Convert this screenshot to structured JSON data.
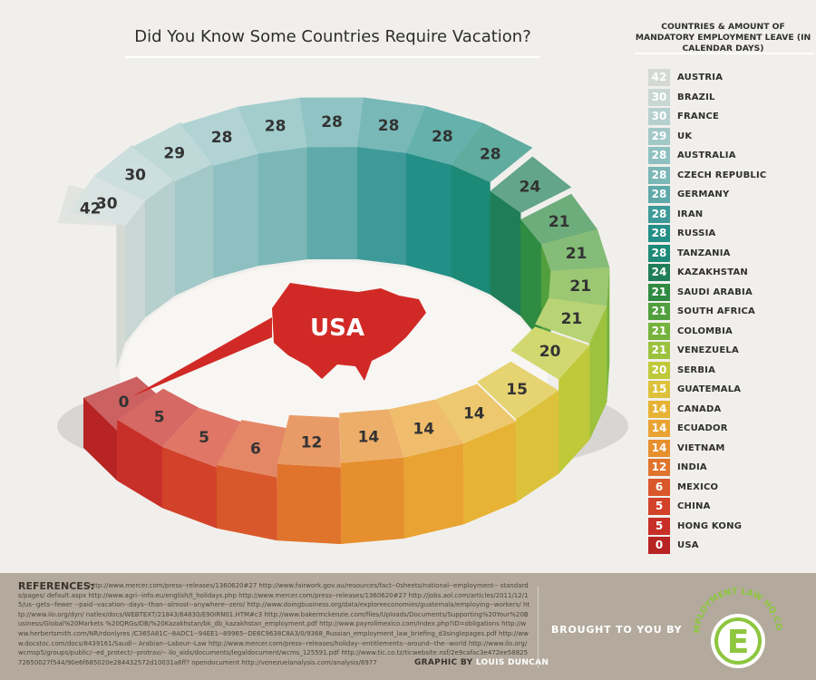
{
  "title": "Did You Know Some Countries Require Vacation?",
  "legend_title": "Countries & Amount of Mandatory Employment Leave (in Calendar Days)",
  "center_label": "USA",
  "chart_data": {
    "type": "bar",
    "title": "Did You Know Some Countries Require Vacation?",
    "categories": [
      "AUSTRIA",
      "BRAZIL",
      "FRANCE",
      "UK",
      "AUSTRALIA",
      "CZECH REPUBLIC",
      "GERMANY",
      "IRAN",
      "RUSSIA",
      "TANZANIA",
      "KAZAKHSTAN",
      "SAUDI ARABIA",
      "SOUTH AFRICA",
      "COLOMBIA",
      "VENEZUELA",
      "SERBIA",
      "GUATEMALA",
      "CANADA",
      "ECUADOR",
      "VIETNAM",
      "INDIA",
      "MEXICO",
      "CHINA",
      "HONG KONG",
      "USA"
    ],
    "values": [
      42,
      30,
      30,
      29,
      28,
      28,
      28,
      28,
      28,
      28,
      24,
      21,
      21,
      21,
      21,
      20,
      15,
      14,
      14,
      14,
      12,
      6,
      5,
      5,
      0
    ],
    "colors": [
      "#d4d9d3",
      "#c9d7d4",
      "#b6d0cf",
      "#a3c8c8",
      "#8fc0c1",
      "#7cb7b7",
      "#5fa9aa",
      "#3e9a98",
      "#238f87",
      "#1c8a76",
      "#1f7e58",
      "#2f8a42",
      "#519f3d",
      "#75b33c",
      "#9dc23e",
      "#bfc939",
      "#dcc23a",
      "#e6b335",
      "#e9a332",
      "#e68f2e",
      "#e0742c",
      "#d9582b",
      "#d2412a",
      "#c72f28",
      "#b82324"
    ],
    "legend": "right"
  },
  "footer": {
    "references_title": "REFERENCES:",
    "references_text": "http://www.mercer.com/press--releases/1360620#27 http://www.fairwork.gov.au/resources/fact--0sheets/national--employment-- standards/pages/ default.aspx http://www.agri--info.eu/english/t_holidays.php http://www.mercer.com/press--releases/1360620#27 http://jobs.aol.com/articles/2011/12/15/us--gets--fewer --paid--vacation--days--than--almost--anywhere--zero/ http://www.doingbusiness.org/data/exploreeconomies/guatemala/employing--workers/ http://www.ilo.org/dyn/ natlex/docs/WEBTEXT/21843/64830/E90IRN01.HTM#c3 http://www.bakermckenzie.com/files/Uploads/Documents/Supporting%20Your%20Business/Global%20Markets %20QRGs/DB/%20Kazakhstan/bk_db_kazakhstan_employment.pdf http://www.payrollmexico.com/index.php?ID=obligations http://www.herbertsmith.com/NR/rdonlyres /C365A81C--8ADC1--94EE1--89965--DE6C9638C8A3/0/9368_Russian_employment_law_briefing_d3singlepages.pdf http://www.docstoc.com/docs/8439161/Saudi-- Arabian--Labour--Law http://www.mercer.com/press--releases/holiday--entitlements--around--the--world http://www.ilo.org/wcmsp5/groups/public/--ed_protect/--protrav/-- ilo_aids/documents/legaldocument/wcms_125591.pdf http://www.tic.co.tz/ticwebsite.nsf/2e9cafac3e472ee5882572650027f544/90e6f685020e284432572d10031a6ff? opendocument http://venezuelanalysis.com/analysis/6977",
    "graphic_by_label": "GRAPHIC BY",
    "graphic_by_name": "LOUIS DUNCAN",
    "brought_by": "BROUGHT TO YOU BY",
    "logo_text": "EMPLOYMENT LAW HQ.COM",
    "logo_letter": "E",
    "logo_color": "#8dc63f"
  }
}
